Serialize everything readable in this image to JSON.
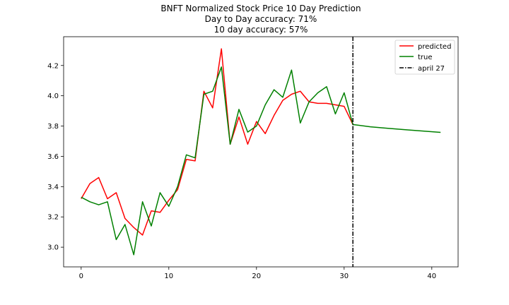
{
  "chart_data": {
    "type": "line",
    "title_lines": [
      "BNFT Normalized Stock Price 10 Day Prediction",
      "Day to Day accuracy: 71%",
      "10 day accuracy: 57%"
    ],
    "xlim": [
      -2,
      43
    ],
    "ylim": [
      2.87,
      4.39
    ],
    "xticks": [
      0,
      10,
      20,
      30,
      40
    ],
    "yticks": [
      3.0,
      3.2,
      3.4,
      3.6,
      3.8,
      4.0,
      4.2
    ],
    "ytick_labels": [
      "3.0",
      "3.2",
      "3.4",
      "3.6",
      "3.8",
      "4.0",
      "4.2"
    ],
    "legend_position": "upper right",
    "series": [
      {
        "name": "predicted",
        "color": "#ff0000",
        "x": [
          0,
          1,
          2,
          3,
          4,
          5,
          6,
          7,
          8,
          9,
          10,
          11,
          12,
          13,
          14,
          15,
          16,
          17,
          18,
          19,
          20,
          21,
          22,
          23,
          24,
          25,
          26,
          27,
          28,
          29,
          30,
          31
        ],
        "y": [
          3.32,
          3.42,
          3.46,
          3.32,
          3.36,
          3.19,
          3.13,
          3.08,
          3.24,
          3.23,
          3.31,
          3.38,
          3.58,
          3.57,
          4.03,
          3.92,
          4.31,
          3.68,
          3.86,
          3.68,
          3.83,
          3.75,
          3.87,
          3.97,
          4.01,
          4.03,
          3.96,
          3.95,
          3.95,
          3.94,
          3.93,
          3.81
        ]
      },
      {
        "name": "true",
        "color": "#008000",
        "x": [
          0,
          1,
          2,
          3,
          4,
          5,
          6,
          7,
          8,
          9,
          10,
          11,
          12,
          13,
          14,
          15,
          16,
          17,
          18,
          19,
          20,
          21,
          22,
          23,
          24,
          25,
          26,
          27,
          28,
          29,
          30,
          31,
          33,
          35,
          37,
          39,
          41
        ],
        "y": [
          3.33,
          3.3,
          3.28,
          3.3,
          3.05,
          3.15,
          2.95,
          3.3,
          3.14,
          3.36,
          3.27,
          3.4,
          3.61,
          3.59,
          4.01,
          4.03,
          4.19,
          3.68,
          3.91,
          3.76,
          3.8,
          3.94,
          4.04,
          3.99,
          4.17,
          3.82,
          3.96,
          4.02,
          4.06,
          3.88,
          4.02,
          3.81,
          3.795,
          3.785,
          3.776,
          3.767,
          3.758
        ]
      }
    ],
    "vline": {
      "name": "april 27",
      "x": 31,
      "color": "#000000",
      "style": "dashdot"
    }
  }
}
